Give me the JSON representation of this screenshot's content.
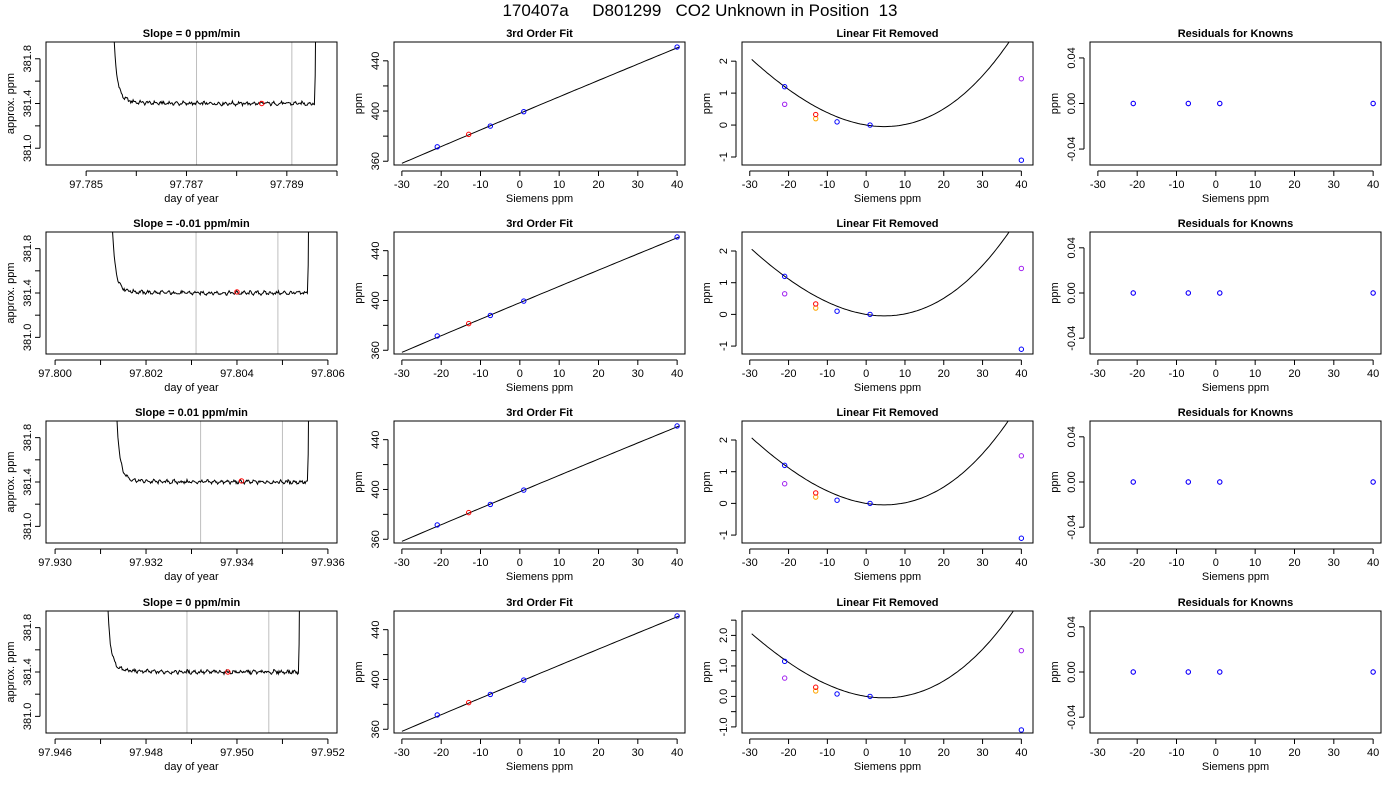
{
  "page": {
    "title": "170407a     D801299   CO2 Unknown in Position  13"
  },
  "colors": {
    "line": "#000000",
    "window": "#bebebe",
    "unknown_point": "#ff0000",
    "known_point": "#0000ff",
    "orange_point": "#ffa500",
    "magenta_point": "#a020f0",
    "axis": "#000000"
  },
  "chart_data": [
    {
      "panel": "row1-time-series",
      "type": "line",
      "title": "Slope =  0  ppm/min",
      "xlabel": "day of year",
      "ylabel": "approx. ppm",
      "xlim": [
        97.7842,
        97.79
      ],
      "ylim": [
        380.85,
        381.95
      ],
      "x_ticks": [
        97.785,
        97.786,
        97.787,
        97.788,
        97.789,
        97.79
      ],
      "x_tick_labels": [
        "97.785",
        "",
        "97.787",
        "",
        "97.789",
        ""
      ],
      "y_ticks": [
        381.0,
        381.2,
        381.4,
        381.6,
        381.8
      ],
      "y_tick_labels": [
        "381.0",
        "",
        "381.4",
        "",
        "381.8"
      ],
      "window_lines": [
        97.7872,
        97.7891
      ],
      "trace_start": 97.7855,
      "trace_end": 97.78955,
      "plateau": 381.4,
      "red_point": {
        "x": 97.7885,
        "y": 381.4
      }
    },
    {
      "panel": "row1-fit",
      "type": "scatter",
      "title": "3rd Order Fit",
      "xlabel": "Siemens ppm",
      "ylabel": "ppm",
      "xlim": [
        -32,
        42
      ],
      "ylim": [
        357,
        455
      ],
      "x_ticks": [
        -30,
        -20,
        -10,
        0,
        10,
        20,
        30,
        40
      ],
      "y_ticks": [
        360,
        380,
        400,
        420,
        440
      ],
      "y_tick_labels": [
        "360",
        "",
        "400",
        "",
        "440"
      ],
      "curve_x_range": [
        -30,
        40.5
      ],
      "known_x": [
        -21,
        -7.5,
        1,
        40
      ],
      "known_y": [
        371.5,
        388,
        399.5,
        451
      ],
      "unknown_point": {
        "x": -13,
        "y": 381.4
      }
    },
    {
      "panel": "row1-linear-removed",
      "type": "scatter",
      "title": "Linear Fit Removed",
      "xlabel": "Siemens ppm",
      "ylabel": "ppm",
      "xlim": [
        -32,
        43
      ],
      "ylim": [
        -1.25,
        2.6
      ],
      "x_ticks": [
        -30,
        -20,
        -10,
        0,
        10,
        20,
        30,
        40
      ],
      "y_ticks": [
        -1,
        0,
        1,
        2
      ],
      "y_tick_labels": [
        "-1",
        "0",
        "1",
        "2"
      ],
      "curve": {
        "a": 1.15e-05,
        "b": 0.00203,
        "c": -0.01975,
        "d": 0.0,
        "x_range": [
          -29.5,
          40.5
        ]
      },
      "known": [
        {
          "x": -21,
          "y": 1.2
        },
        {
          "x": -7.5,
          "y": 0.1
        },
        {
          "x": 1,
          "y": 0.0
        },
        {
          "x": 40,
          "y": -1.1
        }
      ],
      "magenta": [
        {
          "x": -21,
          "y": 0.65
        },
        {
          "x": 40,
          "y": 1.45
        }
      ],
      "orange": {
        "x": -13,
        "y": 0.2
      },
      "red": {
        "x": -13,
        "y": 0.33
      }
    },
    {
      "panel": "row1-residuals",
      "type": "scatter",
      "title": "Residuals for Knowns",
      "xlabel": "Siemens ppm",
      "ylabel": "ppm",
      "xlim": [
        -32,
        42
      ],
      "ylim": [
        -0.054,
        0.054
      ],
      "x_ticks": [
        -30,
        -20,
        -10,
        0,
        10,
        20,
        30,
        40
      ],
      "y_ticks": [
        -0.04,
        0.0,
        0.04
      ],
      "y_tick_labels": [
        "-0.04",
        "0.00",
        "0.04"
      ],
      "points_x": [
        -21,
        -7,
        1,
        40
      ],
      "points_y": [
        0,
        0,
        0,
        0
      ]
    },
    {
      "panel": "row2-time-series",
      "type": "line",
      "title": "Slope =  -0.01  ppm/min",
      "xlabel": "day of year",
      "ylabel": "approx. ppm",
      "xlim": [
        97.7998,
        97.8062
      ],
      "ylim": [
        380.85,
        381.95
      ],
      "x_ticks": [
        97.8,
        97.801,
        97.802,
        97.803,
        97.804,
        97.805,
        97.806
      ],
      "x_tick_labels": [
        "97.800",
        "",
        "97.802",
        "",
        "97.804",
        "",
        "97.806"
      ],
      "y_ticks": [
        381.0,
        381.2,
        381.4,
        381.6,
        381.8
      ],
      "y_tick_labels": [
        "381.0",
        "",
        "381.4",
        "",
        "381.8"
      ],
      "window_lines": [
        97.8031,
        97.8049
      ],
      "trace_start": 97.8012,
      "trace_end": 97.80555,
      "plateau": 381.4,
      "red_point": {
        "x": 97.804,
        "y": 381.41
      }
    },
    {
      "panel": "row2-fit",
      "type": "scatter",
      "title": "3rd Order Fit",
      "xlabel": "Siemens ppm",
      "ylabel": "ppm",
      "xlim": [
        -32,
        42
      ],
      "ylim": [
        357,
        455
      ],
      "x_ticks": [
        -30,
        -20,
        -10,
        0,
        10,
        20,
        30,
        40
      ],
      "y_ticks": [
        360,
        380,
        400,
        420,
        440
      ],
      "y_tick_labels": [
        "360",
        "",
        "400",
        "",
        "440"
      ],
      "curve_x_range": [
        -30,
        40.5
      ],
      "known_x": [
        -21,
        -7.5,
        1,
        40
      ],
      "known_y": [
        371.5,
        388,
        399.5,
        451
      ],
      "unknown_point": {
        "x": -13,
        "y": 381.4
      }
    },
    {
      "panel": "row2-linear-removed",
      "type": "scatter",
      "title": "Linear Fit Removed",
      "xlabel": "Siemens ppm",
      "ylabel": "ppm",
      "xlim": [
        -32,
        43
      ],
      "ylim": [
        -1.25,
        2.6
      ],
      "x_ticks": [
        -30,
        -20,
        -10,
        0,
        10,
        20,
        30,
        40
      ],
      "y_ticks": [
        -1,
        0,
        1,
        2
      ],
      "y_tick_labels": [
        "-1",
        "0",
        "1",
        "2"
      ],
      "curve": {
        "a": 1.15e-05,
        "b": 0.00203,
        "c": -0.01975,
        "d": 0.0,
        "x_range": [
          -29.5,
          40.5
        ]
      },
      "known": [
        {
          "x": -21,
          "y": 1.2
        },
        {
          "x": -7.5,
          "y": 0.1
        },
        {
          "x": 1,
          "y": 0.0
        },
        {
          "x": 40,
          "y": -1.1
        }
      ],
      "magenta": [
        {
          "x": -21,
          "y": 0.65
        },
        {
          "x": 40,
          "y": 1.45
        }
      ],
      "orange": {
        "x": -13,
        "y": 0.2
      },
      "red": {
        "x": -13,
        "y": 0.33
      }
    },
    {
      "panel": "row2-residuals",
      "type": "scatter",
      "title": "Residuals for Knowns",
      "xlabel": "Siemens ppm",
      "ylabel": "ppm",
      "xlim": [
        -32,
        42
      ],
      "ylim": [
        -0.054,
        0.054
      ],
      "x_ticks": [
        -30,
        -20,
        -10,
        0,
        10,
        20,
        30,
        40
      ],
      "y_ticks": [
        -0.04,
        0.0,
        0.04
      ],
      "y_tick_labels": [
        "-0.04",
        "0.00",
        "0.04"
      ],
      "points_x": [
        -21,
        -7,
        1,
        40
      ],
      "points_y": [
        0,
        0,
        0,
        0
      ]
    },
    {
      "panel": "row3-time-series",
      "type": "line",
      "title": "Slope =  0.01  ppm/min",
      "xlabel": "day of year",
      "ylabel": "approx. ppm",
      "xlim": [
        97.9298,
        97.9362
      ],
      "ylim": [
        380.85,
        381.95
      ],
      "x_ticks": [
        97.93,
        97.931,
        97.932,
        97.933,
        97.934,
        97.935,
        97.936
      ],
      "x_tick_labels": [
        "97.930",
        "",
        "97.932",
        "",
        "97.934",
        "",
        "97.936"
      ],
      "y_ticks": [
        381.0,
        381.2,
        381.4,
        381.6,
        381.8
      ],
      "y_tick_labels": [
        "381.0",
        "",
        "381.4",
        "",
        "381.8"
      ],
      "window_lines": [
        97.9332,
        97.935
      ],
      "trace_start": 97.9313,
      "trace_end": 97.93555,
      "plateau": 381.4,
      "red_point": {
        "x": 97.9341,
        "y": 381.41
      }
    },
    {
      "panel": "row3-fit",
      "type": "scatter",
      "title": "3rd Order Fit",
      "xlabel": "Siemens ppm",
      "ylabel": "ppm",
      "xlim": [
        -32,
        42
      ],
      "ylim": [
        357,
        455
      ],
      "x_ticks": [
        -30,
        -20,
        -10,
        0,
        10,
        20,
        30,
        40
      ],
      "y_ticks": [
        360,
        380,
        400,
        420,
        440
      ],
      "y_tick_labels": [
        "360",
        "",
        "400",
        "",
        "440"
      ],
      "curve_x_range": [
        -30,
        40.5
      ],
      "known_x": [
        -21,
        -7.5,
        1,
        40
      ],
      "known_y": [
        371.5,
        388,
        399.5,
        451
      ],
      "unknown_point": {
        "x": -13,
        "y": 381.4
      }
    },
    {
      "panel": "row3-linear-removed",
      "type": "scatter",
      "title": "Linear Fit Removed",
      "xlabel": "Siemens ppm",
      "ylabel": "ppm",
      "xlim": [
        -32,
        43
      ],
      "ylim": [
        -1.25,
        2.6
      ],
      "x_ticks": [
        -30,
        -20,
        -10,
        0,
        10,
        20,
        30,
        40
      ],
      "y_ticks": [
        -1,
        0,
        1,
        2
      ],
      "y_tick_labels": [
        "-1",
        "0",
        "1",
        "2"
      ],
      "curve": {
        "a": 1.18e-05,
        "b": 0.00205,
        "c": -0.0198,
        "d": 0.0,
        "x_range": [
          -29.5,
          40.5
        ]
      },
      "known": [
        {
          "x": -21,
          "y": 1.2
        },
        {
          "x": -7.5,
          "y": 0.1
        },
        {
          "x": 1,
          "y": 0.0
        },
        {
          "x": 40,
          "y": -1.1
        }
      ],
      "magenta": [
        {
          "x": -21,
          "y": 0.62
        },
        {
          "x": 40,
          "y": 1.5
        }
      ],
      "orange": {
        "x": -13,
        "y": 0.2
      },
      "red": {
        "x": -13,
        "y": 0.33
      }
    },
    {
      "panel": "row3-residuals",
      "type": "scatter",
      "title": "Residuals for Knowns",
      "xlabel": "Siemens ppm",
      "ylabel": "ppm",
      "xlim": [
        -32,
        42
      ],
      "ylim": [
        -0.054,
        0.054
      ],
      "x_ticks": [
        -30,
        -20,
        -10,
        0,
        10,
        20,
        30,
        40
      ],
      "y_ticks": [
        -0.04,
        0.0,
        0.04
      ],
      "y_tick_labels": [
        "-0.04",
        "0.00",
        "0.04"
      ],
      "points_x": [
        -21,
        -7,
        1,
        40
      ],
      "points_y": [
        0,
        0,
        0,
        0
      ]
    },
    {
      "panel": "row4-time-series",
      "type": "line",
      "title": "Slope =  0  ppm/min",
      "xlabel": "day of year",
      "ylabel": "approx. ppm",
      "xlim": [
        97.9458,
        97.9522
      ],
      "ylim": [
        380.85,
        381.95
      ],
      "x_ticks": [
        97.946,
        97.947,
        97.948,
        97.949,
        97.95,
        97.951,
        97.952
      ],
      "x_tick_labels": [
        "97.946",
        "",
        "97.948",
        "",
        "97.950",
        "",
        "97.952"
      ],
      "y_ticks": [
        381.0,
        381.2,
        381.4,
        381.6,
        381.8
      ],
      "y_tick_labels": [
        "381.0",
        "",
        "381.4",
        "",
        "381.8"
      ],
      "window_lines": [
        97.9489,
        97.9507
      ],
      "trace_start": 97.9471,
      "trace_end": 97.95135,
      "plateau": 381.4,
      "red_point": {
        "x": 97.9498,
        "y": 381.4
      }
    },
    {
      "panel": "row4-fit",
      "type": "scatter",
      "title": "3rd Order Fit",
      "xlabel": "Siemens ppm",
      "ylabel": "ppm",
      "xlim": [
        -32,
        42
      ],
      "ylim": [
        357,
        455
      ],
      "x_ticks": [
        -30,
        -20,
        -10,
        0,
        10,
        20,
        30,
        40
      ],
      "y_ticks": [
        360,
        380,
        400,
        420,
        440
      ],
      "y_tick_labels": [
        "360",
        "",
        "400",
        "",
        "440"
      ],
      "curve_x_range": [
        -30,
        40.5
      ],
      "known_x": [
        -21,
        -7.5,
        1,
        40
      ],
      "known_y": [
        371.5,
        388,
        399.5,
        451
      ],
      "unknown_point": {
        "x": -13,
        "y": 381.4
      }
    },
    {
      "panel": "row4-linear-removed",
      "type": "scatter",
      "title": "Linear Fit Removed",
      "xlabel": "Siemens ppm",
      "ylabel": "ppm",
      "xlim": [
        -32,
        43
      ],
      "ylim": [
        -1.2,
        2.8
      ],
      "x_ticks": [
        -30,
        -20,
        -10,
        0,
        10,
        20,
        30,
        40
      ],
      "y_ticks": [
        -1.0,
        -0.5,
        0.0,
        0.5,
        1.0,
        1.5,
        2.0,
        2.5
      ],
      "y_tick_labels": [
        "-1.0",
        "",
        "0.0",
        "",
        "1.0",
        "",
        "2.0",
        ""
      ],
      "curve": {
        "a": 1.15e-05,
        "b": 0.00203,
        "c": -0.01975,
        "d": 0.0,
        "x_range": [
          -29.5,
          40.5
        ]
      },
      "known": [
        {
          "x": -21,
          "y": 1.15
        },
        {
          "x": -7.5,
          "y": 0.08
        },
        {
          "x": 1,
          "y": 0.0
        },
        {
          "x": 40,
          "y": -1.1
        }
      ],
      "magenta": [
        {
          "x": -21,
          "y": 0.6
        },
        {
          "x": 40,
          "y": 1.5
        }
      ],
      "orange": {
        "x": -13,
        "y": 0.18
      },
      "red": {
        "x": -13,
        "y": 0.3
      }
    },
    {
      "panel": "row4-residuals",
      "type": "scatter",
      "title": "Residuals for Knowns",
      "xlabel": "Siemens ppm",
      "ylabel": "ppm",
      "xlim": [
        -32,
        42
      ],
      "ylim": [
        -0.054,
        0.054
      ],
      "x_ticks": [
        -30,
        -20,
        -10,
        0,
        10,
        20,
        30,
        40
      ],
      "y_ticks": [
        -0.04,
        0.0,
        0.04
      ],
      "y_tick_labels": [
        "-0.04",
        "0.00",
        "0.04"
      ],
      "points_x": [
        -21,
        -7,
        1,
        40
      ],
      "points_y": [
        0,
        0,
        0,
        0
      ]
    }
  ]
}
